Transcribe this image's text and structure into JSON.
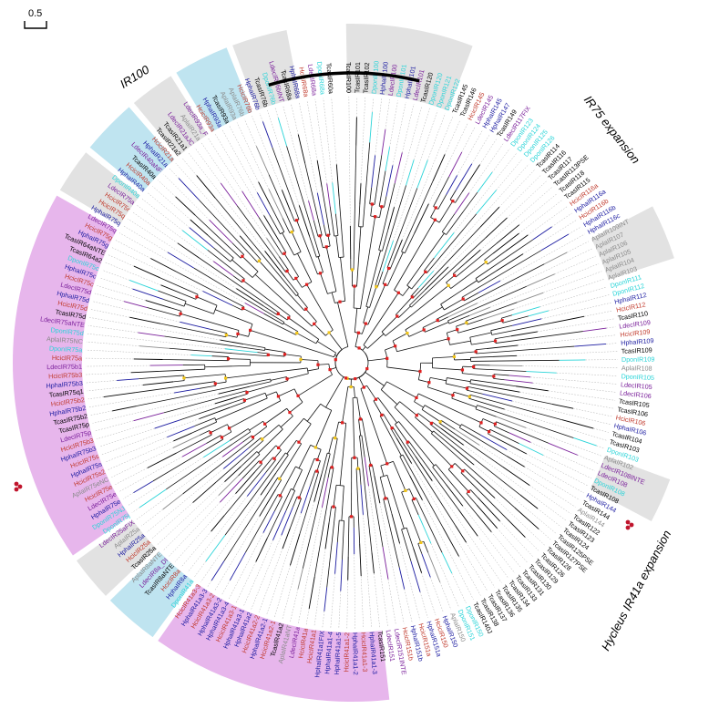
{
  "scale_bar": {
    "label": "0.5"
  },
  "colors": {
    "Tcas": "#000000",
    "Dpon": "#2ad4d8",
    "Hpha": "#1a1aa0",
    "Ldec": "#7a1f9a",
    "Hcic": "#c0392b",
    "Apla": "#8a8a8a",
    "band_gray": "#e2e2e2",
    "band_blue": "#bfe4f0",
    "band_pink": "#e7b6ec",
    "node_red": "#e02020",
    "node_yellow": "#f0c419"
  },
  "clades": [
    {
      "label": "IR100"
    },
    {
      "label": "IR75 expansion"
    },
    {
      "label": "Hycleus IR41a expansion"
    }
  ],
  "tips": [
    {
      "label": "TcasIR100",
      "sp": "Tcas"
    },
    {
      "label": "TcasIR101",
      "sp": "Tcas"
    },
    {
      "label": "TcasIR102",
      "sp": "Tcas"
    },
    {
      "label": "DponIR100",
      "sp": "Dpon"
    },
    {
      "label": "HphaIR100",
      "sp": "Hpha"
    },
    {
      "label": "LdecIR100",
      "sp": "Ldec"
    },
    {
      "label": "DponIR101",
      "sp": "Dpon"
    },
    {
      "label": "HphaIR101",
      "sp": "Hpha"
    },
    {
      "label": "LdecIR101",
      "sp": "Ldec"
    },
    {
      "label": "TcasIR120",
      "sp": "Tcas"
    },
    {
      "label": "DponIR120",
      "sp": "Dpon"
    },
    {
      "label": "DponIR121",
      "sp": "Dpon"
    },
    {
      "label": "DponIR122",
      "sp": "Dpon"
    },
    {
      "label": "TcasIR145",
      "sp": "Tcas"
    },
    {
      "label": "TcasIR146",
      "sp": "Tcas"
    },
    {
      "label": "HcicIR145",
      "sp": "Hcic"
    },
    {
      "label": "LdecIR145",
      "sp": "Ldec"
    },
    {
      "label": "HphaIR145",
      "sp": "Hpha"
    },
    {
      "label": "HphaIR147",
      "sp": "Hpha"
    },
    {
      "label": "TcasIR149",
      "sp": "Tcas"
    },
    {
      "label": "LdecIR117FIX",
      "sp": "Ldec"
    },
    {
      "label": "DponIR123",
      "sp": "Dpon"
    },
    {
      "label": "DponIR124",
      "sp": "Dpon"
    },
    {
      "label": "DponIR125",
      "sp": "Dpon"
    },
    {
      "label": "DponIR126",
      "sp": "Dpon"
    },
    {
      "label": "TcasIR114",
      "sp": "Tcas"
    },
    {
      "label": "TcasIR116",
      "sp": "Tcas"
    },
    {
      "label": "TcasIR117",
      "sp": "Tcas"
    },
    {
      "label": "TcasIR113PSE",
      "sp": "Tcas"
    },
    {
      "label": "TcasIR118",
      "sp": "Tcas"
    },
    {
      "label": "TcasIR115",
      "sp": "Tcas"
    },
    {
      "label": "HcicIR116a",
      "sp": "Hcic"
    },
    {
      "label": "HphaIR116a",
      "sp": "Hpha"
    },
    {
      "label": "HcicIR116b",
      "sp": "Hcic"
    },
    {
      "label": "HphaIR116b",
      "sp": "Hpha"
    },
    {
      "label": "HphaIR116c",
      "sp": "Hpha"
    },
    {
      "label": "AplaIR109INT",
      "sp": "Apla"
    },
    {
      "label": "AplaIR107",
      "sp": "Apla"
    },
    {
      "label": "AplaIR106",
      "sp": "Apla"
    },
    {
      "label": "AplaIR105",
      "sp": "Apla"
    },
    {
      "label": "AplaIR104",
      "sp": "Apla"
    },
    {
      "label": "AplaIR103",
      "sp": "Apla"
    },
    {
      "label": "DponIR111",
      "sp": "Dpon"
    },
    {
      "label": "DponIR112",
      "sp": "Dpon"
    },
    {
      "label": "HphaIR112",
      "sp": "Hpha"
    },
    {
      "label": "HcicIR112",
      "sp": "Hcic"
    },
    {
      "label": "TcasIR110",
      "sp": "Tcas"
    },
    {
      "label": "LdecIR109",
      "sp": "Ldec"
    },
    {
      "label": "HcicIR109",
      "sp": "Hcic"
    },
    {
      "label": "HphaIR109",
      "sp": "Hpha"
    },
    {
      "label": "TcasIR109",
      "sp": "Tcas"
    },
    {
      "label": "DponIR109",
      "sp": "Dpon"
    },
    {
      "label": "AplaIR108",
      "sp": "Apla"
    },
    {
      "label": "DponIR105",
      "sp": "Dpon"
    },
    {
      "label": "LdecIR105",
      "sp": "Ldec"
    },
    {
      "label": "LdecIR106",
      "sp": "Ldec"
    },
    {
      "label": "TcasIR105",
      "sp": "Tcas"
    },
    {
      "label": "TcasIR106",
      "sp": "Tcas"
    },
    {
      "label": "HcicIR106",
      "sp": "Hcic"
    },
    {
      "label": "HphaIR106",
      "sp": "Hpha"
    },
    {
      "label": "TcasIR104",
      "sp": "Tcas"
    },
    {
      "label": "TcasIR103",
      "sp": "Tcas"
    },
    {
      "label": "DponIR103",
      "sp": "Dpon"
    },
    {
      "label": "AplaIR102",
      "sp": "Apla"
    },
    {
      "label": "LdecIR108INTE",
      "sp": "Ldec"
    },
    {
      "label": "LdecIR108",
      "sp": "Ldec"
    },
    {
      "label": "DponIR108",
      "sp": "Dpon"
    },
    {
      "label": "TcasIR108",
      "sp": "Tcas"
    },
    {
      "label": "HphaIR144",
      "sp": "Hpha"
    },
    {
      "label": "TcasIR144",
      "sp": "Tcas"
    },
    {
      "label": "AplaIR144",
      "sp": "Apla"
    },
    {
      "label": "TcasIR122",
      "sp": "Tcas"
    },
    {
      "label": "TcasIR123",
      "sp": "Tcas"
    },
    {
      "label": "TcasIR124",
      "sp": "Tcas"
    },
    {
      "label": "TcasIR125PSE",
      "sp": "Tcas"
    },
    {
      "label": "TcasIR127PSE",
      "sp": "Tcas"
    },
    {
      "label": "TcasIR128",
      "sp": "Tcas"
    },
    {
      "label": "TcasIR126",
      "sp": "Tcas"
    },
    {
      "label": "TcasIR129",
      "sp": "Tcas"
    },
    {
      "label": "TcasIR130",
      "sp": "Tcas"
    },
    {
      "label": "TcasIR131",
      "sp": "Tcas"
    },
    {
      "label": "TcasIR133",
      "sp": "Tcas"
    },
    {
      "label": "TcasIR134",
      "sp": "Tcas"
    },
    {
      "label": "TcasIR135",
      "sp": "Tcas"
    },
    {
      "label": "TcasIR136",
      "sp": "Tcas"
    },
    {
      "label": "TcasIR137",
      "sp": "Tcas"
    },
    {
      "label": "TcasIR138",
      "sp": "Tcas"
    },
    {
      "label": "TcasIR140J",
      "sp": "Tcas"
    },
    {
      "label": "DponIR150",
      "sp": "Dpon"
    },
    {
      "label": "DponIR151",
      "sp": "Dpon"
    },
    {
      "label": "AplaIR150",
      "sp": "Apla"
    },
    {
      "label": "HphaIR150",
      "sp": "Hpha"
    },
    {
      "label": "HcicIR150",
      "sp": "Hcic"
    },
    {
      "label": "HphaIR151a",
      "sp": "Hpha"
    },
    {
      "label": "HcicIR151a",
      "sp": "Hcic"
    },
    {
      "label": "HphaIR151b",
      "sp": "Hpha"
    },
    {
      "label": "HcicIR151b",
      "sp": "Hcic"
    },
    {
      "label": "LdecIR151INTE",
      "sp": "Ldec"
    },
    {
      "label": "LdecIR151",
      "sp": "Ldec"
    },
    {
      "label": "TcasIR151",
      "sp": "Tcas"
    },
    {
      "label": "HphaIR41a1-3",
      "sp": "Hpha"
    },
    {
      "label": "HcicIR41a1-3",
      "sp": "Hcic"
    },
    {
      "label": "HphaIR41a1-2",
      "sp": "Hpha"
    },
    {
      "label": "HcicIR41a1-2",
      "sp": "Hcic"
    },
    {
      "label": "HphaIR41a1-5",
      "sp": "Hpha"
    },
    {
      "label": "HphaIR41a1-4",
      "sp": "Hpha"
    },
    {
      "label": "HphaIR41a1FIX",
      "sp": "Hpha"
    },
    {
      "label": "HcicIR41a1",
      "sp": "Hcic"
    },
    {
      "label": "HcicIR41a",
      "sp": "Hcic"
    },
    {
      "label": "LdecIR41a",
      "sp": "Ldec"
    },
    {
      "label": "AplaIR41aNT",
      "sp": "Apla"
    },
    {
      "label": "TcasIR41a2",
      "sp": "Tcas"
    },
    {
      "label": "HcicIR41a2-1",
      "sp": "Hcic"
    },
    {
      "label": "HphaIR41a2-1",
      "sp": "Hpha"
    },
    {
      "label": "HcicIR41a2-2",
      "sp": "Hcic"
    },
    {
      "label": "HphaIR41a2",
      "sp": "Hpha"
    },
    {
      "label": "HphaIR41a3-1",
      "sp": "Hpha"
    },
    {
      "label": "HcicIR41a3-1",
      "sp": "Hcic"
    },
    {
      "label": "HphaIR41a3-4",
      "sp": "Hpha"
    },
    {
      "label": "HphaIR41a3-2",
      "sp": "Hpha"
    },
    {
      "label": "HcicIR41a3-2",
      "sp": "Hcic"
    },
    {
      "label": "HphaIR41a3-3",
      "sp": "Hpha"
    },
    {
      "label": "HcicIR41a3-3",
      "sp": "Hcic"
    },
    {
      "label": "DponIR41a",
      "sp": "Dpon"
    },
    {
      "label": "HphaIR8a",
      "sp": "Hpha"
    },
    {
      "label": "HcicIR8a",
      "sp": "Hcic"
    },
    {
      "label": "TcasIR8aNTE",
      "sp": "Tcas"
    },
    {
      "label": "LdecIR8a_DI",
      "sp": "Ldec"
    },
    {
      "label": "AplaIR8aNTE",
      "sp": "Apla"
    },
    {
      "label": "TcasIR25a",
      "sp": "Tcas"
    },
    {
      "label": "HcicIR25a",
      "sp": "Hcic"
    },
    {
      "label": "HphaIR25a",
      "sp": "Hpha"
    },
    {
      "label": "AplaIR25a",
      "sp": "Apla"
    },
    {
      "label": "LdecIR25aFIX",
      "sp": "Ldec"
    },
    {
      "label": "DponIR75j",
      "sp": "Dpon"
    },
    {
      "label": "DponIR75NJ",
      "sp": "Dpon"
    },
    {
      "label": "HphaIR75e",
      "sp": "Hpha"
    },
    {
      "label": "LdecIR75e",
      "sp": "Ldec"
    },
    {
      "label": "HcicIR75e",
      "sp": "Hcic"
    },
    {
      "label": "AplaIR75eNC",
      "sp": "Apla"
    },
    {
      "label": "HcicIR75s2",
      "sp": "Hcic"
    },
    {
      "label": "HphaIR75s",
      "sp": "Hpha"
    },
    {
      "label": "HcicIR75s",
      "sp": "Hcic"
    },
    {
      "label": "HphaIR75b3",
      "sp": "Hpha"
    },
    {
      "label": "HcicIR75b3",
      "sp": "Hcic"
    },
    {
      "label": "LdecIR75p",
      "sp": "Ldec"
    },
    {
      "label": "TcasIR75p",
      "sp": "Tcas"
    },
    {
      "label": "TcasIR75b2",
      "sp": "Tcas"
    },
    {
      "label": "HphaIR75b2",
      "sp": "Hpha"
    },
    {
      "label": "HcicIR75b2",
      "sp": "Hcic"
    },
    {
      "label": "TcasIR75q1",
      "sp": "Tcas"
    },
    {
      "label": "HphaIR75b3",
      "sp": "Hpha"
    },
    {
      "label": "HcicIR75b3",
      "sp": "Hcic"
    },
    {
      "label": "LdecIR75b1",
      "sp": "Ldec"
    },
    {
      "label": "HcicIR75a",
      "sp": "Hcic"
    },
    {
      "label": "DponIR75a",
      "sp": "Dpon"
    },
    {
      "label": "AplaIR75NC",
      "sp": "Apla"
    },
    {
      "label": "DponIR75d",
      "sp": "Dpon"
    },
    {
      "label": "LdecIR75aNTE",
      "sp": "Ldec"
    },
    {
      "label": "TcasIR75d",
      "sp": "Tcas"
    },
    {
      "label": "HcicIR75d",
      "sp": "Hcic"
    },
    {
      "label": "HphaIR75d",
      "sp": "Hpha"
    },
    {
      "label": "LdecIR75d",
      "sp": "Ldec"
    },
    {
      "label": "HcicIR75c",
      "sp": "Hcic"
    },
    {
      "label": "HphaIR75c",
      "sp": "Hpha"
    },
    {
      "label": "DponIR75c",
      "sp": "Dpon"
    },
    {
      "label": "TcasIR64a2",
      "sp": "Tcas"
    },
    {
      "label": "TcasIR64aNTE",
      "sp": "Tcas"
    },
    {
      "label": "HphaIR75g",
      "sp": "Hpha"
    },
    {
      "label": "HcicIR75g",
      "sp": "Hcic"
    },
    {
      "label": "LdecIR75q",
      "sp": "Ldec"
    },
    {
      "label": "HphaIR75q",
      "sp": "Hpha"
    },
    {
      "label": "HcicIR75q",
      "sp": "Hcic"
    },
    {
      "label": "HcicIR75r",
      "sp": "Hcic"
    },
    {
      "label": "LdecIR75a",
      "sp": "Ldec"
    },
    {
      "label": "DponIR40a",
      "sp": "Dpon"
    },
    {
      "label": "HphaIR40a",
      "sp": "Hpha"
    },
    {
      "label": "HcicIR40a",
      "sp": "Hcic"
    },
    {
      "label": "TcasIR40a",
      "sp": "Tcas"
    },
    {
      "label": "LdecIR40aNF",
      "sp": "Ldec"
    },
    {
      "label": "HphaIR21a",
      "sp": "Hpha"
    },
    {
      "label": "HcicIR21a",
      "sp": "Hcic"
    },
    {
      "label": "TcasIR21a2",
      "sp": "Tcas"
    },
    {
      "label": "TcasIR21a1",
      "sp": "Tcas"
    },
    {
      "label": "LdecIR21aJC",
      "sp": "Ldec"
    },
    {
      "label": "AplaIR21a",
      "sp": "Apla"
    },
    {
      "label": "LdecIR93a_F",
      "sp": "Ldec"
    },
    {
      "label": "HcicIR93a",
      "sp": "Hcic"
    },
    {
      "label": "HphaIR93a",
      "sp": "Hpha"
    },
    {
      "label": "TcasIR93a",
      "sp": "Tcas"
    },
    {
      "label": "AplaIR93a",
      "sp": "Apla"
    },
    {
      "label": "AplaIR76b",
      "sp": "Apla"
    },
    {
      "label": "HcicIR76b",
      "sp": "Hcic"
    },
    {
      "label": "HphaIR76b",
      "sp": "Hpha"
    },
    {
      "label": "TcasIR76b",
      "sp": "Tcas"
    },
    {
      "label": "DponIR76b",
      "sp": "Dpon"
    },
    {
      "label": "LdecIR76bINT",
      "sp": "Ldec"
    },
    {
      "label": "TcasIR68a",
      "sp": "Tcas"
    },
    {
      "label": "HphaIR68a",
      "sp": "Hpha"
    },
    {
      "label": "HcicIR68a",
      "sp": "Hcic"
    },
    {
      "label": "LdecIR68a",
      "sp": "Ldec"
    },
    {
      "label": "DponIR68a",
      "sp": "Dpon"
    },
    {
      "label": "TcasIR60a",
      "sp": "Tcas"
    }
  ]
}
